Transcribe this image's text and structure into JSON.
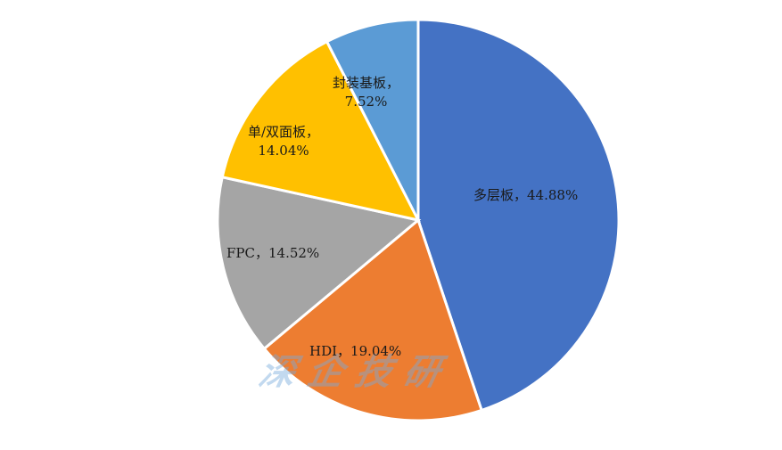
{
  "chart_data": {
    "type": "pie",
    "title": "",
    "start_angle_deg": 0,
    "direction": "clockwise",
    "center": [
      469,
      247
    ],
    "radius": 225,
    "slices": [
      {
        "label": "多层板",
        "value": 44.88,
        "color": "#4472C4",
        "text": "多层板, 44.88%"
      },
      {
        "label": "HDI",
        "value": 19.04,
        "color": "#ED7D31",
        "text": "HDI, 19.04%"
      },
      {
        "label": "FPC",
        "value": 14.52,
        "color": "#A5A5A5",
        "text": "FPC, 14.52%"
      },
      {
        "label": "单/双面板",
        "value": 14.04,
        "color": "#FFC000",
        "text": "单/双面板, 14.04%"
      },
      {
        "label": "封装基板",
        "value": 7.52,
        "color": "#5B9BD5",
        "text": "封装基板, 7.52%"
      }
    ],
    "categories": [
      "多层板",
      "HDI",
      "FPC",
      "单/双面板",
      "封装基板"
    ],
    "values": [
      44.88,
      19.04,
      14.52,
      14.04,
      7.52
    ],
    "legend": "none"
  },
  "labels": {
    "multilayer": "多层板，44.88%",
    "hdi": "HDI，19.04%",
    "fpc": "FPC，14.52%",
    "single_double_l1": "单/双面板，",
    "single_double_l2": "14.04%",
    "substrate_l1": "封装基板，",
    "substrate_l2": "7.52%"
  },
  "watermark": "深企技研"
}
